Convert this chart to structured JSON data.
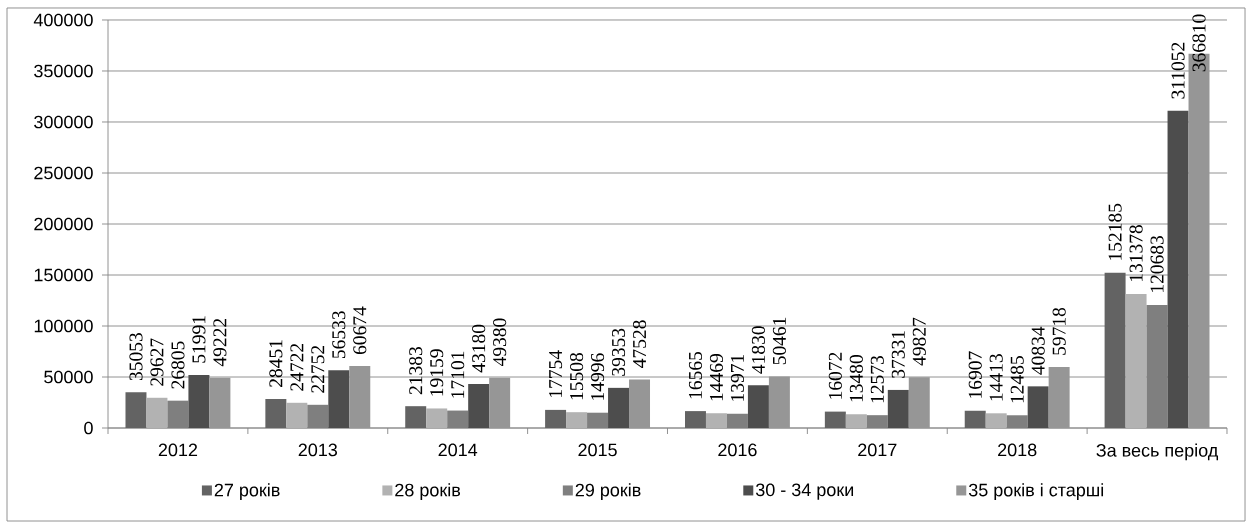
{
  "chart_data": {
    "type": "bar",
    "categories": [
      "2012",
      "2013",
      "2014",
      "2015",
      "2016",
      "2017",
      "2018",
      "За весь період"
    ],
    "series": [
      {
        "name": "27 років",
        "color": "#636363",
        "values": [
          35053,
          28451,
          21383,
          17754,
          16565,
          16072,
          16907,
          152185
        ]
      },
      {
        "name": "28 років",
        "color": "#b2b2b2",
        "values": [
          29627,
          24722,
          19159,
          15508,
          14469,
          13480,
          14413,
          131378
        ]
      },
      {
        "name": "29 років",
        "color": "#7f7f7f",
        "values": [
          26805,
          22752,
          17101,
          14996,
          13971,
          12573,
          12485,
          120683
        ]
      },
      {
        "name": "30 - 34 роки",
        "color": "#4d4d4d",
        "values": [
          51991,
          56533,
          43180,
          39353,
          41830,
          37331,
          40834,
          311052
        ]
      },
      {
        "name": "35 років і старші",
        "color": "#969696",
        "values": [
          49222,
          60674,
          49380,
          47528,
          50461,
          49827,
          59718,
          366810
        ]
      }
    ],
    "ylim": [
      0,
      400000
    ],
    "yticks": [
      0,
      50000,
      100000,
      150000,
      200000,
      250000,
      300000,
      350000,
      400000
    ],
    "grid": "y",
    "legend": "bottom",
    "data_labels": true
  }
}
